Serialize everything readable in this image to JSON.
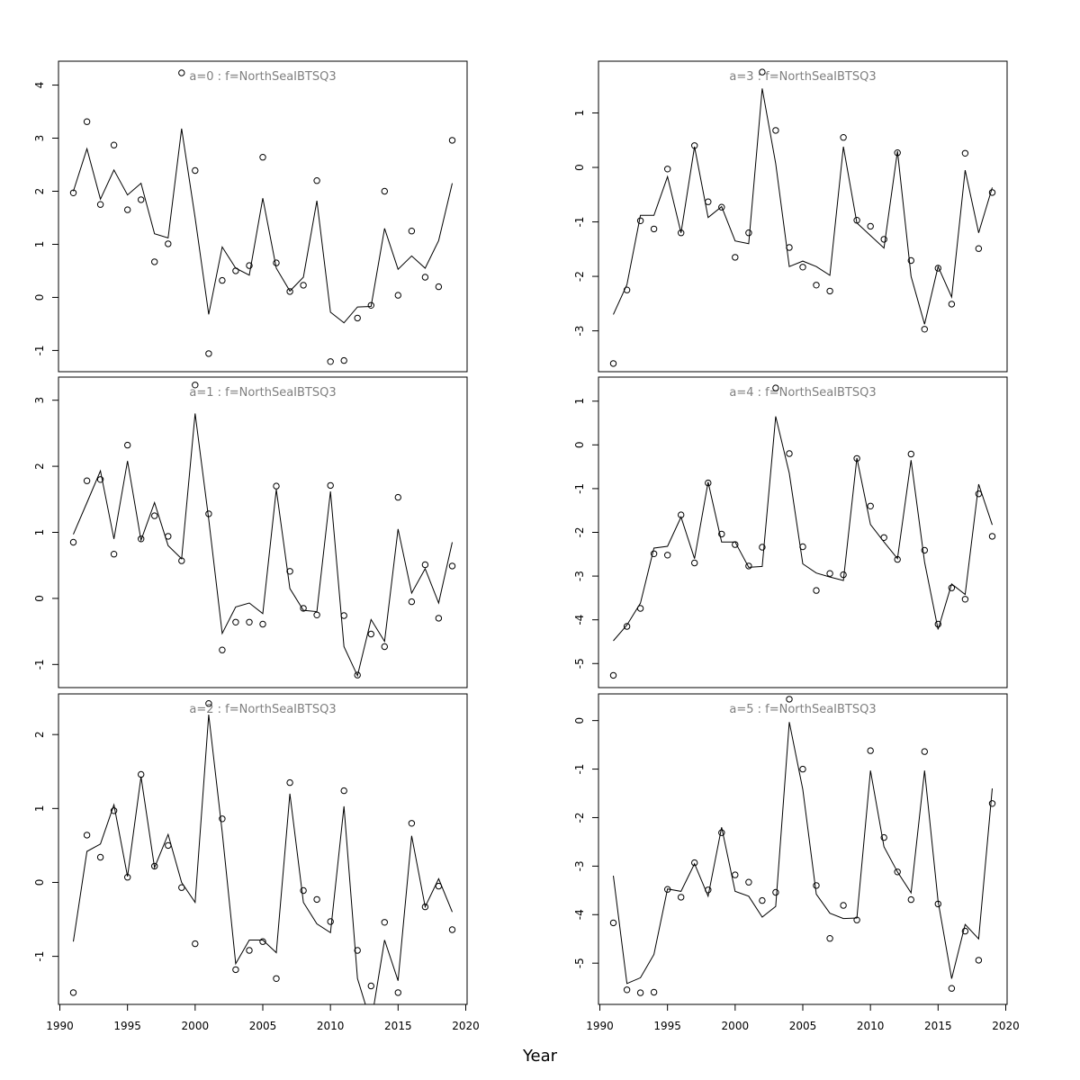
{
  "figure": {
    "xlabel": "Year"
  },
  "chart_data": [
    {
      "type": "line",
      "title": "a=0  :  f=NorthSeaIBTSQ3",
      "x": [
        1991,
        1992,
        1993,
        1994,
        1995,
        1996,
        1997,
        1998,
        1999,
        2000,
        2001,
        2002,
        2003,
        2004,
        2005,
        2006,
        2007,
        2008,
        2009,
        2010,
        2011,
        2012,
        2013,
        2014,
        2015,
        2016,
        2017,
        2018,
        2019
      ],
      "series": [
        {
          "kind": "line",
          "values": [
            2.0,
            2.8,
            1.85,
            2.4,
            1.93,
            2.15,
            1.2,
            1.12,
            3.18,
            1.5,
            -0.32,
            0.95,
            0.55,
            0.42,
            1.87,
            0.55,
            0.12,
            0.38,
            1.82,
            -0.28,
            -0.48,
            -0.18,
            -0.17,
            1.3,
            0.53,
            0.78,
            0.55,
            1.07,
            2.15
          ]
        },
        {
          "kind": "points",
          "values": [
            1.97,
            3.31,
            1.75,
            2.87,
            1.65,
            1.84,
            0.67,
            1.01,
            4.23,
            2.39,
            -1.06,
            0.32,
            0.5,
            0.6,
            2.64,
            0.65,
            0.11,
            0.23,
            2.2,
            -1.21,
            -1.19,
            -0.39,
            -0.15,
            2.0,
            0.04,
            1.25,
            0.38,
            0.2,
            2.96
          ]
        }
      ],
      "xlim": [
        1989.9,
        2020.1
      ],
      "ylim": [
        -1.4,
        4.45
      ],
      "yticks": [
        -1,
        0,
        1,
        2,
        3,
        4
      ],
      "show_xaxis": false
    },
    {
      "type": "line",
      "title": "a=3  :  f=NorthSeaIBTSQ3",
      "x": [
        1991,
        1992,
        1993,
        1994,
        1995,
        1996,
        1997,
        1998,
        1999,
        2000,
        2001,
        2002,
        2003,
        2004,
        2005,
        2006,
        2007,
        2008,
        2009,
        2010,
        2011,
        2012,
        2013,
        2014,
        2015,
        2016,
        2017,
        2018,
        2019
      ],
      "series": [
        {
          "kind": "line",
          "values": [
            -2.7,
            -2.15,
            -0.88,
            -0.88,
            -0.17,
            -1.2,
            0.38,
            -0.92,
            -0.72,
            -1.35,
            -1.4,
            1.45,
            0.07,
            -1.82,
            -1.72,
            -1.82,
            -1.98,
            0.38,
            -1.02,
            -1.25,
            -1.48,
            0.3,
            -2.0,
            -2.88,
            -1.82,
            -2.38,
            -0.05,
            -1.2,
            -0.37
          ]
        },
        {
          "kind": "points",
          "values": [
            -3.6,
            -2.25,
            -0.98,
            -1.13,
            -0.03,
            -1.2,
            0.4,
            -0.63,
            -0.73,
            -1.65,
            -1.2,
            1.75,
            0.68,
            -1.47,
            -1.83,
            -2.16,
            -2.27,
            0.55,
            -0.97,
            -1.08,
            -1.32,
            0.27,
            -1.71,
            -2.97,
            -1.85,
            -2.51,
            0.26,
            -1.49,
            -0.46
          ]
        }
      ],
      "xlim": [
        1989.9,
        2020.1
      ],
      "ylim": [
        -3.75,
        1.95
      ],
      "yticks": [
        -3,
        -2,
        -1,
        0,
        1
      ],
      "show_xaxis": false
    },
    {
      "type": "line",
      "title": "a=1  :  f=NorthSeaIBTSQ3",
      "x": [
        1991,
        1992,
        1993,
        1994,
        1995,
        1996,
        1997,
        1998,
        1999,
        2000,
        2001,
        2002,
        2003,
        2004,
        2005,
        2006,
        2007,
        2008,
        2009,
        2010,
        2011,
        2012,
        2013,
        2014,
        2015,
        2016,
        2017,
        2018,
        2019
      ],
      "series": [
        {
          "kind": "line",
          "values": [
            0.97,
            1.45,
            1.93,
            0.9,
            2.08,
            0.88,
            1.45,
            0.8,
            0.6,
            2.8,
            1.2,
            -0.53,
            -0.13,
            -0.07,
            -0.23,
            1.65,
            0.15,
            -0.18,
            -0.2,
            1.62,
            -0.73,
            -1.17,
            -0.32,
            -0.65,
            1.05,
            0.08,
            0.45,
            -0.07,
            0.85
          ]
        },
        {
          "kind": "points",
          "values": [
            0.85,
            1.78,
            1.8,
            0.67,
            2.32,
            0.9,
            1.25,
            0.94,
            0.57,
            3.23,
            1.28,
            -0.78,
            -0.36,
            -0.36,
            -0.39,
            1.7,
            0.41,
            -0.15,
            -0.25,
            1.71,
            -0.26,
            -1.16,
            -0.54,
            -0.73,
            1.53,
            -0.05,
            0.51,
            -0.3,
            0.49
          ]
        }
      ],
      "xlim": [
        1989.9,
        2020.1
      ],
      "ylim": [
        -1.35,
        3.35
      ],
      "yticks": [
        -1,
        0,
        1,
        2,
        3
      ],
      "show_xaxis": false
    },
    {
      "type": "line",
      "title": "a=4  :  f=NorthSeaIBTSQ3",
      "x": [
        1991,
        1992,
        1993,
        1994,
        1995,
        1996,
        1997,
        1998,
        1999,
        2000,
        2001,
        2002,
        2003,
        2004,
        2005,
        2006,
        2007,
        2008,
        2009,
        2010,
        2011,
        2012,
        2013,
        2014,
        2015,
        2016,
        2017,
        2018,
        2019
      ],
      "series": [
        {
          "kind": "line",
          "values": [
            -4.48,
            -4.12,
            -3.62,
            -2.36,
            -2.32,
            -1.65,
            -2.6,
            -0.85,
            -2.22,
            -2.22,
            -2.8,
            -2.78,
            0.65,
            -0.65,
            -2.72,
            -2.93,
            -3.02,
            -3.1,
            -0.3,
            -1.82,
            -2.22,
            -2.6,
            -0.35,
            -2.68,
            -4.22,
            -3.18,
            -3.42,
            -0.9,
            -1.83
          ]
        },
        {
          "kind": "points",
          "values": [
            -5.27,
            -4.15,
            -3.74,
            -2.49,
            -2.52,
            -1.6,
            -2.7,
            -0.87,
            -2.04,
            -2.28,
            -2.77,
            -2.34,
            1.3,
            -0.2,
            -2.33,
            -3.33,
            -2.94,
            -2.97,
            -0.31,
            -1.4,
            -2.12,
            -2.62,
            -0.21,
            -2.41,
            -4.1,
            -3.27,
            -3.53,
            -1.12,
            -2.09
          ]
        }
      ],
      "xlim": [
        1989.9,
        2020.1
      ],
      "ylim": [
        -5.55,
        1.55
      ],
      "yticks": [
        -5,
        -4,
        -3,
        -2,
        -1,
        0,
        1
      ],
      "show_xaxis": false
    },
    {
      "type": "line",
      "title": "a=2  :  f=NorthSeaIBTSQ3",
      "x": [
        1991,
        1992,
        1993,
        1994,
        1995,
        1996,
        1997,
        1998,
        1999,
        2000,
        2001,
        2002,
        2003,
        2004,
        2005,
        2006,
        2007,
        2008,
        2009,
        2010,
        2011,
        2012,
        2013,
        2014,
        2015,
        2016,
        2017,
        2018,
        2019
      ],
      "series": [
        {
          "kind": "line",
          "values": [
            -0.8,
            0.42,
            0.52,
            1.05,
            0.08,
            1.43,
            0.2,
            0.65,
            0.0,
            -0.27,
            2.27,
            0.68,
            -1.1,
            -0.78,
            -0.78,
            -0.95,
            1.2,
            -0.27,
            -0.56,
            -0.68,
            1.03,
            -1.3,
            -1.9,
            -0.78,
            -1.33,
            0.63,
            -0.33,
            0.05,
            -0.4
          ]
        },
        {
          "kind": "points",
          "values": [
            -1.49,
            0.64,
            0.34,
            0.97,
            0.07,
            1.46,
            0.22,
            0.5,
            -0.07,
            -0.83,
            2.42,
            0.86,
            -1.18,
            -0.92,
            -0.8,
            -1.3,
            1.35,
            -0.11,
            -0.23,
            -0.53,
            1.24,
            -0.92,
            -1.4,
            -0.54,
            -1.49,
            0.8,
            -0.33,
            -0.05,
            -0.64
          ]
        }
      ],
      "xlim": [
        1989.9,
        2020.1
      ],
      "ylim": [
        -1.65,
        2.55
      ],
      "yticks": [
        -1,
        0,
        1,
        2
      ],
      "xticks": [
        1990,
        1995,
        2000,
        2005,
        2010,
        2015,
        2020
      ],
      "show_xaxis": true
    },
    {
      "type": "line",
      "title": "a=5  :  f=NorthSeaIBTSQ3",
      "x": [
        1991,
        1992,
        1993,
        1994,
        1995,
        1996,
        1997,
        1998,
        1999,
        2000,
        2001,
        2002,
        2003,
        2004,
        2005,
        2006,
        2007,
        2008,
        2009,
        2010,
        2011,
        2012,
        2013,
        2014,
        2015,
        2016,
        2017,
        2018,
        2019
      ],
      "series": [
        {
          "kind": "line",
          "values": [
            -3.2,
            -5.42,
            -5.3,
            -4.82,
            -3.47,
            -3.52,
            -2.95,
            -3.62,
            -2.2,
            -3.52,
            -3.62,
            -4.05,
            -3.83,
            -0.03,
            -1.42,
            -3.58,
            -3.97,
            -4.08,
            -4.07,
            -1.03,
            -2.6,
            -3.12,
            -3.55,
            -1.03,
            -3.72,
            -5.32,
            -4.2,
            -4.5,
            -1.4
          ]
        },
        {
          "kind": "points",
          "values": [
            -4.17,
            -5.55,
            -5.61,
            -5.6,
            -3.48,
            -3.64,
            -2.93,
            -3.49,
            -2.31,
            -3.18,
            -3.33,
            -3.71,
            -3.54,
            0.44,
            -1.0,
            -3.4,
            -4.49,
            -3.81,
            -4.11,
            -0.62,
            -2.41,
            -3.12,
            -3.69,
            -0.64,
            -3.78,
            -5.52,
            -4.34,
            -4.94,
            -1.71
          ]
        }
      ],
      "xlim": [
        1989.9,
        2020.1
      ],
      "ylim": [
        -5.85,
        0.55
      ],
      "yticks": [
        -5,
        -4,
        -3,
        -2,
        -1,
        0
      ],
      "xticks": [
        1990,
        1995,
        2000,
        2005,
        2010,
        2015,
        2020
      ],
      "show_xaxis": true
    }
  ]
}
